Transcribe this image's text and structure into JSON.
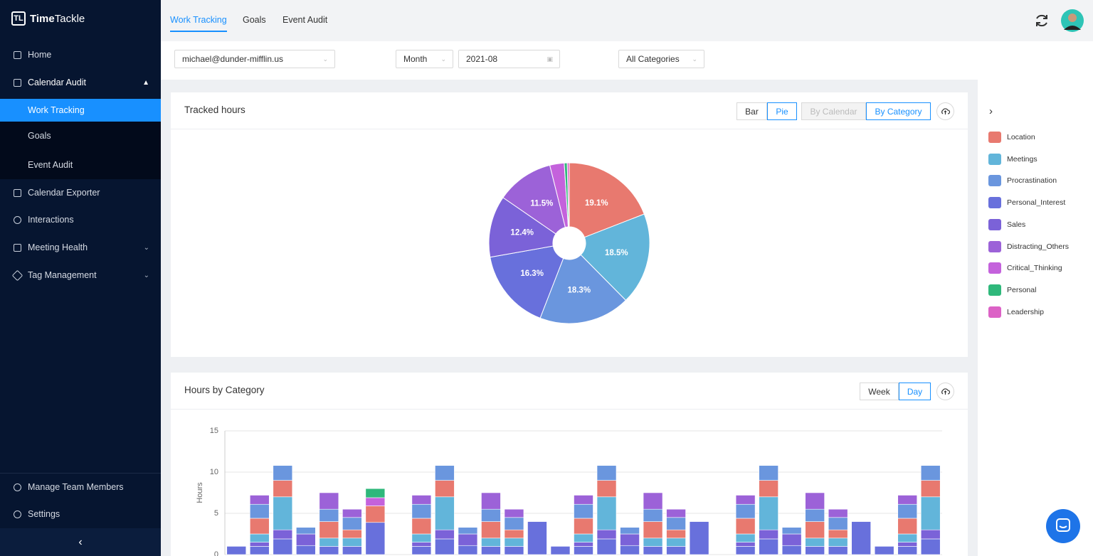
{
  "logo": {
    "bold": "Time",
    "rest": "Tackle"
  },
  "sidebar": {
    "items": [
      "Home",
      "Calendar Audit",
      "Work Tracking",
      "Goals",
      "Event Audit",
      "Calendar Exporter",
      "Interactions",
      "Meeting Health",
      "Tag Management"
    ],
    "bottom": [
      "Manage Team Members",
      "Settings"
    ]
  },
  "tabs": [
    "Work Tracking",
    "Goals",
    "Event Audit"
  ],
  "filters": {
    "user": "michael@dunder-mifflin.us",
    "period": "Month",
    "date": "2021-08",
    "category": "All Categories"
  },
  "cards": {
    "pie_buttons": [
      "Bar",
      "Pie",
      "By Calendar",
      "By Category"
    ],
    "bar_buttons": [
      "Week",
      "Day"
    ]
  },
  "chart_data": [
    {
      "type": "pie",
      "title": "Tracked hours",
      "categories": [
        "Location",
        "Meetings",
        "Procrastination",
        "Personal_Interest",
        "Sales",
        "Distracting_Others",
        "Critical_Thinking",
        "Personal",
        "Leadership"
      ],
      "values": [
        19.1,
        18.5,
        18.3,
        16.3,
        12.4,
        11.5,
        2.9,
        0.6,
        0.4
      ],
      "value_labels": [
        "19.1%",
        "18.5%",
        "18.3%",
        "16.3%",
        "12.4%",
        "11.5%",
        null,
        null,
        null
      ],
      "colors": [
        "#e8796f",
        "#62b5da",
        "#6a96de",
        "#6870dc",
        "#7b62d8",
        "#9c62d8",
        "#c462dc",
        "#2fb87b",
        "#dc62c6"
      ],
      "legend": "right"
    },
    {
      "type": "bar",
      "stacked": true,
      "title": "Hours by Category",
      "ylabel": "Hours",
      "categories": [
        null,
        null,
        null,
        null,
        null,
        null,
        null,
        null,
        null,
        null,
        null,
        null,
        null,
        null,
        null,
        null,
        null,
        null,
        null,
        null,
        null,
        null,
        null,
        null,
        null,
        null,
        null,
        null,
        null,
        null,
        null
      ],
      "series": [
        {
          "color": "#6870dc",
          "values": [
            1,
            1,
            1.9,
            1.1,
            1,
            1,
            3.9,
            0,
            1,
            1.9,
            1.1,
            1,
            1,
            4,
            1,
            1,
            1.9,
            1.1,
            1,
            1,
            4,
            0,
            1,
            1.9,
            1.1,
            1,
            1,
            4,
            1,
            1,
            1.9
          ]
        },
        {
          "color": "#7b62d8",
          "values": [
            0,
            0.5,
            1.1,
            1.4,
            0,
            0,
            0,
            0,
            0.5,
            1.1,
            1.4,
            0,
            0,
            0,
            0,
            0.5,
            1.1,
            1.4,
            0,
            0,
            0,
            0,
            0.5,
            1.1,
            1.4,
            0,
            0,
            0,
            0,
            0.5,
            1.1
          ]
        },
        {
          "color": "#62b5da",
          "values": [
            0,
            1,
            4,
            0,
            1,
            1,
            0,
            0,
            1,
            4,
            0,
            1,
            1,
            0,
            0,
            1,
            4,
            0,
            1,
            1,
            0,
            0,
            1,
            4,
            0,
            1,
            1,
            0,
            0,
            1,
            4
          ]
        },
        {
          "color": "#e8796f",
          "values": [
            0,
            1.9,
            2,
            0,
            2,
            1,
            2,
            0,
            1.9,
            2,
            0,
            2,
            1,
            0,
            0,
            1.9,
            2,
            0,
            2,
            1,
            0,
            0,
            1.9,
            2,
            0,
            2,
            1,
            0,
            0,
            1.9,
            2
          ]
        },
        {
          "color": "#6a96de",
          "values": [
            0,
            1.7,
            1.8,
            0.8,
            1.5,
            1.5,
            0,
            0,
            1.7,
            1.8,
            0.8,
            1.5,
            1.5,
            0,
            0,
            1.7,
            1.8,
            0.8,
            1.5,
            1.5,
            0,
            0,
            1.7,
            1.8,
            0.8,
            1.5,
            1.5,
            0,
            0,
            1.7,
            1.8
          ]
        },
        {
          "color": "#9c62d8",
          "values": [
            0,
            1.1,
            0,
            0,
            2,
            1,
            0,
            0,
            1.1,
            0,
            0,
            2,
            1,
            0,
            0,
            1.1,
            0,
            0,
            2,
            1,
            0,
            0,
            1.1,
            0,
            0,
            2,
            1,
            0,
            0,
            1.1,
            0
          ]
        },
        {
          "color": "#c462dc",
          "values": [
            0,
            0,
            0,
            0,
            0,
            0,
            1,
            0,
            0,
            0,
            0,
            0,
            0,
            0,
            0,
            0,
            0,
            0,
            0,
            0,
            0,
            0,
            0,
            0,
            0,
            0,
            0,
            0,
            0,
            0,
            0
          ]
        },
        {
          "color": "#2fb87b",
          "values": [
            0,
            0,
            0,
            0,
            0,
            0,
            1.1,
            0,
            0,
            0,
            0,
            0,
            0,
            0,
            0,
            0,
            0,
            0,
            0,
            0,
            0,
            0,
            0,
            0,
            0,
            0,
            0,
            0,
            0,
            0,
            0
          ]
        }
      ],
      "ylim": [
        0,
        15
      ],
      "yticks": [
        0,
        5,
        10,
        15
      ],
      "grid": true
    }
  ]
}
